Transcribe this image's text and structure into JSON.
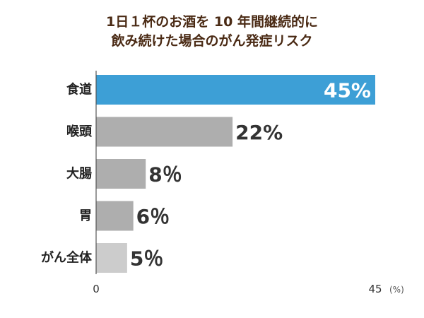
{
  "chart_data": {
    "type": "bar",
    "orientation": "horizontal",
    "title_lines": [
      "1日１杯のお酒を 10 年間継続的に",
      "飲み続けた場合のがん発症リスク"
    ],
    "categories": [
      "食道",
      "喉頭",
      "大腸",
      "胃",
      "がん全体"
    ],
    "values": [
      45,
      22,
      8,
      6,
      5
    ],
    "value_labels": [
      "45%",
      "22%",
      "8％",
      "6％",
      "5％"
    ],
    "xlim": [
      0,
      45
    ],
    "x_ticks": [
      "0",
      "45"
    ],
    "x_unit": "(%)",
    "grid": false,
    "colors": {
      "highlight": "#3d9fd6",
      "bar": "#aeaeae",
      "bar_last": "#cccccc",
      "axis": "#555555"
    }
  }
}
